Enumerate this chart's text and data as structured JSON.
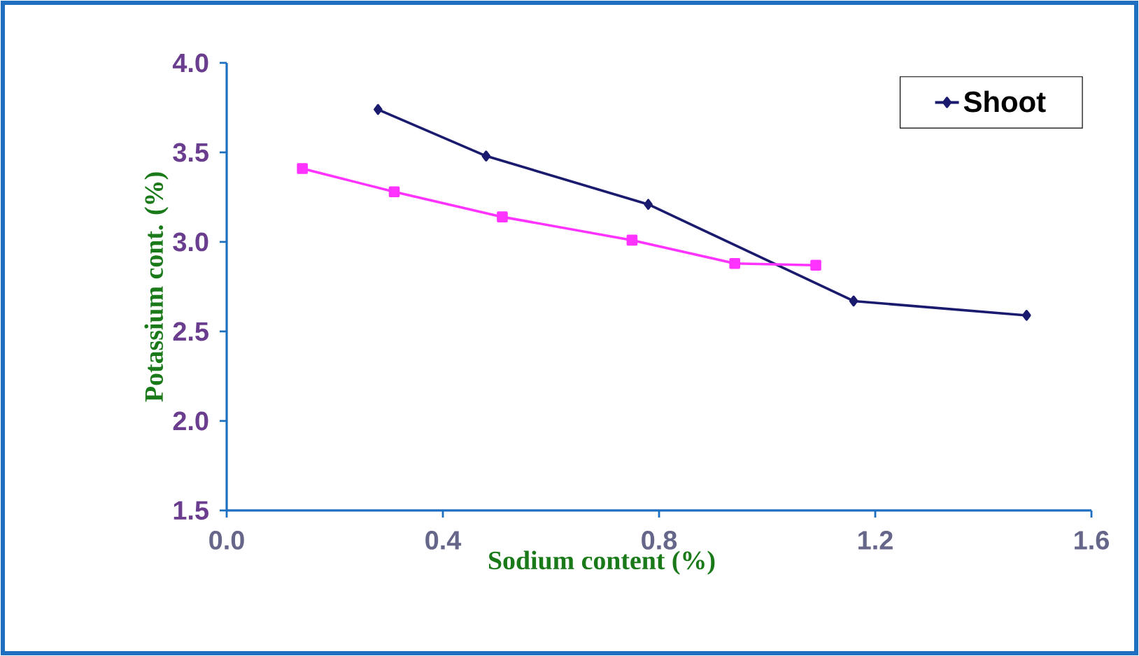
{
  "chart_data": {
    "type": "line",
    "xlabel": "Sodium content (%)",
    "ylabel": "Potassium cont. (%)",
    "xlim": [
      0,
      1.6
    ],
    "ylim": [
      1.5,
      4.0
    ],
    "xticks": [
      {
        "value": 0,
        "label": "0.0"
      },
      0.4,
      0.8,
      1.2,
      1.6
    ],
    "yticks": [
      1.5,
      {
        "value": 2,
        "label": "2.0"
      },
      2.5,
      {
        "value": 3,
        "label": "3.0"
      },
      3.5,
      {
        "value": 4,
        "label": "4.0"
      }
    ],
    "grid": false,
    "legend": "top right",
    "line_style": "solid",
    "series": [
      {
        "name": "Shoot",
        "color": "#1a1a6e",
        "marker": "diamond",
        "x": [
          0.28,
          0.48,
          0.78,
          1.16,
          1.48
        ],
        "values": [
          3.74,
          3.48,
          3.21,
          2.67,
          2.59
        ]
      },
      {
        "color": "#ff33ff",
        "marker": "square",
        "x": [
          0.14,
          0.31,
          0.51,
          0.75,
          0.94,
          1.09
        ],
        "values": [
          3.41,
          3.28,
          3.14,
          3.01,
          2.88,
          2.87
        ]
      }
    ]
  }
}
